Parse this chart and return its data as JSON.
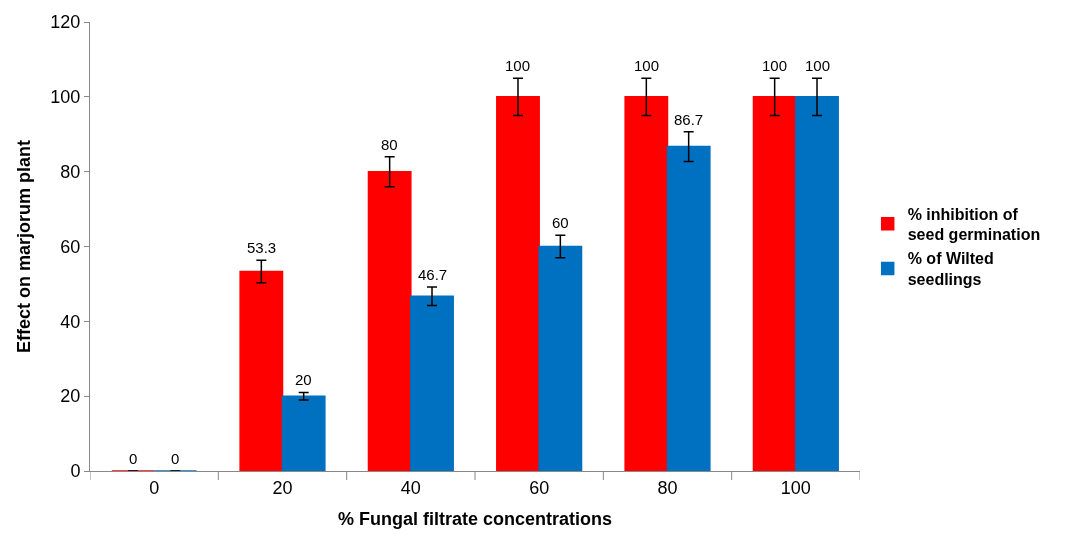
{
  "chart_data": {
    "type": "bar",
    "xlabel": "% Fungal filtrate concentrations",
    "ylabel": "Effect on marjorum plant",
    "categories": [
      "0",
      "20",
      "40",
      "60",
      "80",
      "100"
    ],
    "series": [
      {
        "name": "% inhibition of seed germination",
        "color": "#ff0000",
        "values": [
          0,
          53.3,
          80,
          100,
          100,
          100
        ],
        "errors": [
          null,
          3,
          4,
          5,
          5,
          5
        ]
      },
      {
        "name": "% of Wilted seedlings",
        "color": "#0070c0",
        "values": [
          0,
          20,
          46.7,
          60,
          86.7,
          100
        ],
        "errors": [
          null,
          1,
          2.5,
          3,
          4,
          5
        ]
      }
    ],
    "ylim": [
      0,
      120
    ],
    "yticks": [
      0,
      20,
      40,
      60,
      80,
      100,
      120
    ],
    "grid": false,
    "legend": "right",
    "data_labels": true
  }
}
